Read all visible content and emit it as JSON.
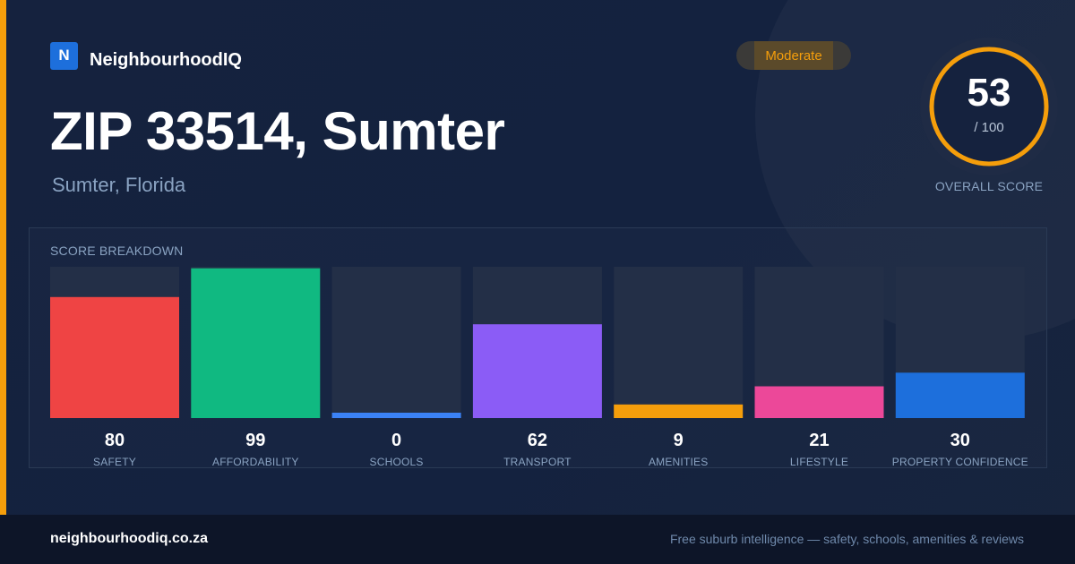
{
  "brand": {
    "logo_letter": "N",
    "name": "NeighbourhoodIQ"
  },
  "badge": {
    "label": "Moderate",
    "color": "#f59e0b"
  },
  "header": {
    "title": "ZIP 33514, Sumter",
    "subtitle": "Sumter, Florida"
  },
  "overall": {
    "score": "53",
    "max_label": "/ 100",
    "caption": "OVERALL SCORE",
    "ring_color": "#f59e0b"
  },
  "breakdown": {
    "title": "SCORE BREAKDOWN"
  },
  "chart_data": {
    "type": "bar",
    "ylim": [
      0,
      100
    ],
    "categories": [
      "SAFETY",
      "AFFORDABILITY",
      "SCHOOLS",
      "TRANSPORT",
      "AMENITIES",
      "LIFESTYLE",
      "PROPERTY CONFIDENCE"
    ],
    "values": [
      80,
      99,
      0,
      62,
      9,
      21,
      30
    ],
    "value_labels": [
      "80",
      "99",
      "0",
      "62",
      "9",
      "21",
      "30"
    ],
    "colors": [
      "#ef4444",
      "#10b981",
      "#3b82f6",
      "#8b5cf6",
      "#f59e0b",
      "#ec4899",
      "#1d6fdc"
    ]
  },
  "footer": {
    "url": "neighbourhoodiq.co.za",
    "tagline": "Free suburb intelligence — safety, schools, amenities & reviews"
  }
}
